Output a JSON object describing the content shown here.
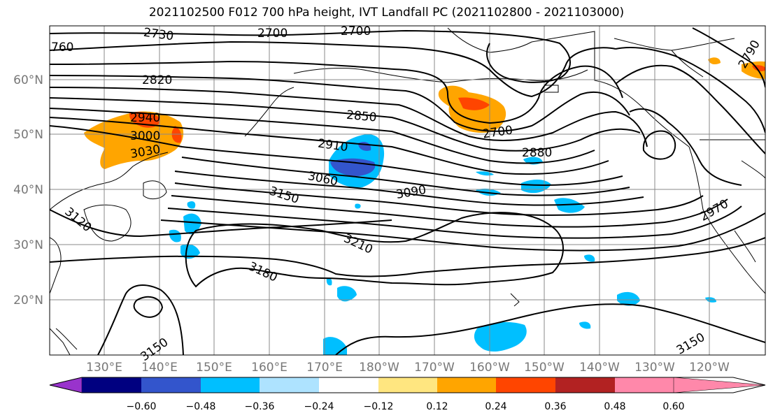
{
  "title": "2021102500 F012 700 hPa height, IVT Landfall PC (2021102800 - 2021103000)",
  "lat_labels": [
    "60°N",
    "50°N",
    "40°N",
    "30°N",
    "20°N"
  ],
  "lon_labels": [
    "130°E",
    "140°E",
    "150°E",
    "160°E",
    "170°E",
    "180°W",
    "170°W",
    "160°W",
    "150°W",
    "140°W",
    "130°W",
    "120°W"
  ],
  "contour_labels": [
    "2730",
    "2700",
    "2700",
    "760",
    "2820",
    "2940",
    "3000",
    "3030",
    "2850",
    "2910",
    "3060",
    "3150",
    "3120",
    "3090",
    "2700",
    "2880",
    "2970",
    "3210",
    "3180",
    "3150",
    "3150",
    "2790"
  ],
  "colorbar": {
    "colors": [
      "#9933cc",
      "#000080",
      "#3355cc",
      "#00bfff",
      "#aee3ff",
      "#ffffff",
      "#ffe680",
      "#ffa500",
      "#ff4500",
      "#b22222",
      "#ff88aa"
    ],
    "tick_labels": [
      "−0.60",
      "−0.48",
      "−0.36",
      "−0.24",
      "−0.12",
      "0.12",
      "0.24",
      "0.36",
      "0.48",
      "0.60"
    ]
  }
}
